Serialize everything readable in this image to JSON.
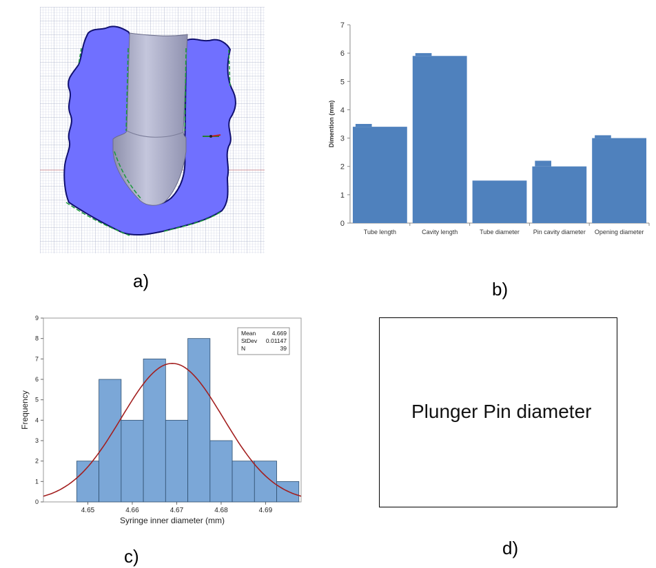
{
  "panels": {
    "a": {
      "label": "a)"
    },
    "b": {
      "label": "b)"
    },
    "c": {
      "label": "c)"
    },
    "d": {
      "label": "d)",
      "text": "Plunger Pin diameter"
    }
  },
  "colors": {
    "bar_b": "#4f81bd",
    "hist_fill": "#7ba7d7",
    "hist_edge": "#2f4f6f",
    "normal_curve": "#a31f1f",
    "cad_body": "#7070ff",
    "cad_outline": "#101070",
    "cad_pin": "#aeb0c8"
  },
  "chart_data": [
    {
      "id": "b",
      "type": "bar",
      "title": "",
      "xlabel": "",
      "ylabel": "Dimention (mm)",
      "ylim": [
        0,
        7
      ],
      "yticks": [
        "0",
        "1",
        "2",
        "3",
        "4",
        "5",
        "6",
        "7"
      ],
      "categories": [
        "Tube length",
        "Cavity length",
        "Tube diameter",
        "Pin cavity diameter",
        "Opening diameter"
      ],
      "values": [
        3.4,
        5.9,
        1.5,
        2.0,
        3.0
      ],
      "peak_values": [
        3.5,
        6.0,
        1.5,
        2.2,
        3.1
      ]
    },
    {
      "id": "c",
      "type": "histogram",
      "xlabel": "Syringe inner diameter (mm)",
      "ylabel": "Frequency",
      "xlim": [
        4.64,
        4.698
      ],
      "ylim": [
        0,
        9
      ],
      "xticks": [
        "4.65",
        "4.66",
        "4.67",
        "4.68",
        "4.69"
      ],
      "xtick_values": [
        4.65,
        4.66,
        4.67,
        4.68,
        4.69
      ],
      "yticks": [
        "0",
        "1",
        "2",
        "3",
        "4",
        "5",
        "6",
        "7",
        "8",
        "9"
      ],
      "bin_start": 4.6475,
      "bin_width": 0.005,
      "frequencies": [
        2,
        6,
        4,
        7,
        4,
        8,
        3,
        2,
        2,
        1
      ],
      "normal_fit": {
        "mean": 4.669,
        "stdev": 0.01147
      },
      "legend": {
        "rows": [
          {
            "label": "Mean",
            "value": "4.669"
          },
          {
            "label": "StDev",
            "value": "0.01147"
          },
          {
            "label": "N",
            "value": "39"
          }
        ]
      }
    }
  ]
}
